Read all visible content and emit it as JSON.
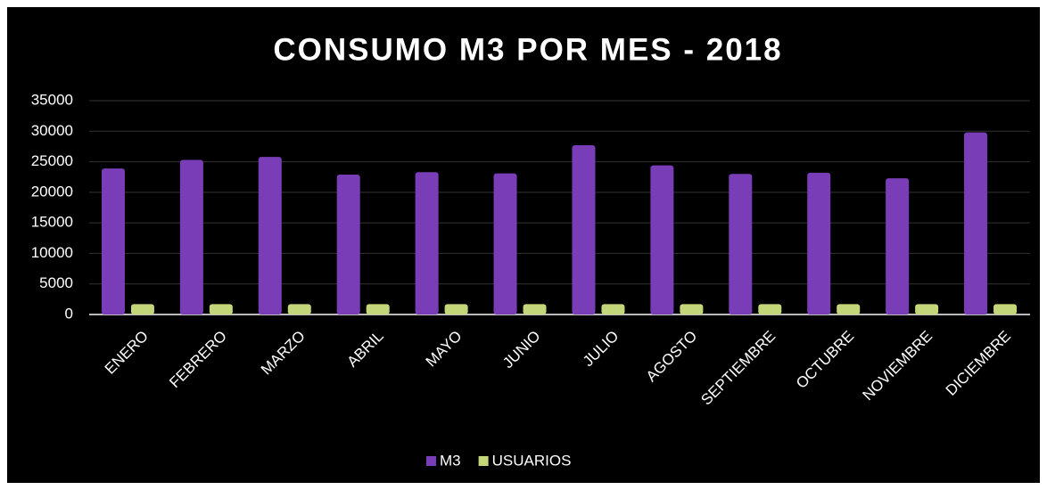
{
  "chart_data": {
    "type": "bar",
    "title": "CONSUMO M3 POR  MES - 2018",
    "categories": [
      "ENERO",
      "FEBRERO",
      "MARZO",
      "ABRIL",
      "MAYO",
      "JUNIO",
      "JULIO",
      "AGOSTO",
      "SEPTIEMBRE",
      "OCTUBRE",
      "NOVIEMBRE",
      "DICIEMBRE"
    ],
    "series": [
      {
        "name": "M3",
        "color": "#7a3db8",
        "values": [
          23900,
          25300,
          25800,
          22900,
          23300,
          23100,
          27700,
          24400,
          23000,
          23200,
          22300,
          29800
        ]
      },
      {
        "name": "USUARIOS",
        "color": "#c3d67a",
        "values": [
          1700,
          1700,
          1700,
          1700,
          1700,
          1700,
          1700,
          1700,
          1700,
          1700,
          1700,
          1700
        ]
      }
    ],
    "ylim": [
      0,
      35000
    ],
    "yticks": [
      0,
      5000,
      10000,
      15000,
      20000,
      25000,
      30000,
      35000
    ],
    "grid": true,
    "legend": "bottom"
  }
}
